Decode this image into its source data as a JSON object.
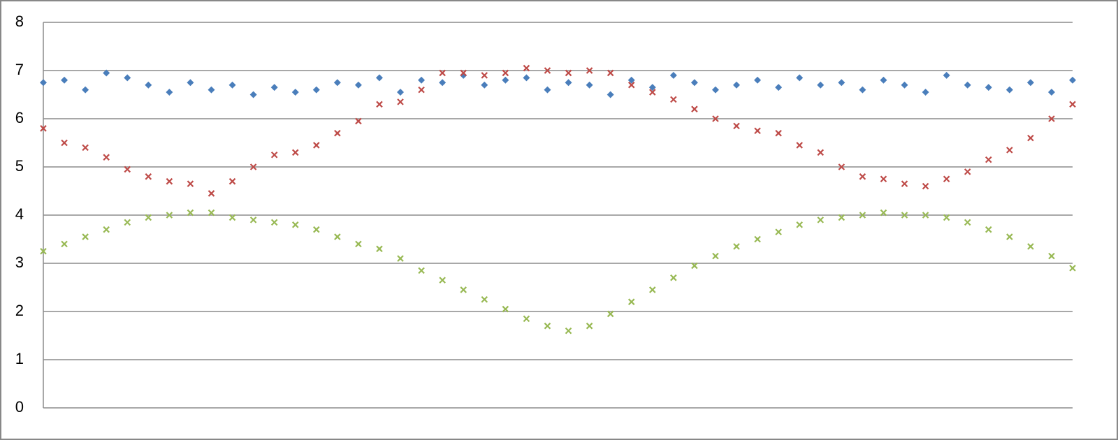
{
  "chart_data": {
    "type": "scatter",
    "ylim": [
      0,
      8
    ],
    "yticks": [
      0,
      1,
      2,
      3,
      4,
      5,
      6,
      7,
      8
    ],
    "grid": true,
    "series": [
      {
        "color": "#4a7ebb",
        "marker": "diamond",
        "values": [
          6.75,
          6.8,
          6.6,
          6.95,
          6.85,
          6.7,
          6.55,
          6.75,
          6.6,
          6.7,
          6.5,
          6.65,
          6.55,
          6.6,
          6.75,
          6.7,
          6.85,
          6.55,
          6.8,
          6.75,
          6.9,
          6.7,
          6.8,
          6.85,
          6.6,
          6.75,
          6.7,
          6.5,
          6.8,
          6.65,
          6.9,
          6.75,
          6.6,
          6.7,
          6.8,
          6.65,
          6.85,
          6.7,
          6.75,
          6.6,
          6.8,
          6.7,
          6.55,
          6.9,
          6.7,
          6.65,
          6.6,
          6.75,
          6.55,
          6.8
        ]
      },
      {
        "color": "#be4b48",
        "marker": "x",
        "values": [
          5.8,
          5.5,
          5.4,
          5.2,
          4.95,
          4.8,
          4.7,
          4.65,
          4.45,
          4.7,
          5.0,
          5.25,
          5.3,
          5.45,
          5.7,
          5.95,
          6.3,
          6.35,
          6.6,
          6.95,
          6.95,
          6.9,
          6.95,
          7.05,
          7.0,
          6.95,
          7.0,
          6.95,
          6.7,
          6.55,
          6.4,
          6.2,
          6.0,
          5.85,
          5.75,
          5.7,
          5.45,
          5.3,
          5.0,
          4.8,
          4.75,
          4.65,
          4.6,
          4.75,
          4.9,
          5.15,
          5.35,
          5.6,
          6.0,
          6.3
        ]
      },
      {
        "color": "#98b954",
        "marker": "x",
        "values": [
          3.25,
          3.4,
          3.55,
          3.7,
          3.85,
          3.95,
          4.0,
          4.05,
          4.05,
          3.95,
          3.9,
          3.85,
          3.8,
          3.7,
          3.55,
          3.4,
          3.3,
          3.1,
          2.85,
          2.65,
          2.45,
          2.25,
          2.05,
          1.85,
          1.7,
          1.6,
          1.7,
          1.95,
          2.2,
          2.45,
          2.7,
          2.95,
          3.15,
          3.35,
          3.5,
          3.65,
          3.8,
          3.9,
          3.95,
          4.0,
          4.05,
          4.0,
          4.0,
          3.95,
          3.85,
          3.7,
          3.55,
          3.35,
          3.15,
          2.9
        ]
      }
    ]
  }
}
